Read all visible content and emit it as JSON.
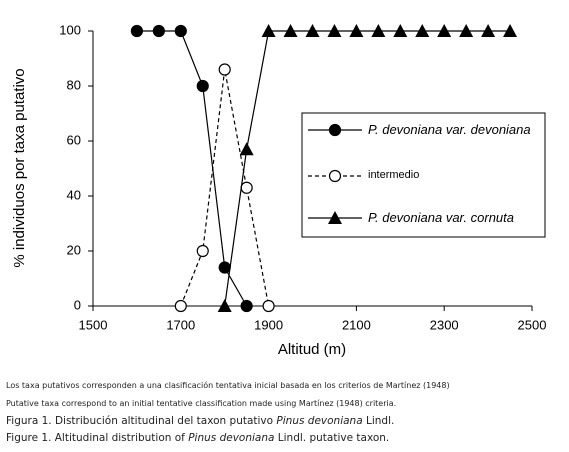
{
  "chart_data": {
    "type": "line",
    "x_label": "Altitud (m)",
    "y_label": "% individuos por taxa putativo",
    "xlim": [
      1500,
      2500
    ],
    "xticks": [
      1500,
      1700,
      1900,
      2100,
      2300,
      2500
    ],
    "ylim": [
      0,
      100
    ],
    "yticks": [
      0,
      20,
      40,
      60,
      80,
      100
    ],
    "grid": false,
    "legend": "right",
    "series": [
      {
        "name": "P. devoniana var. devoniana",
        "color": "#000000",
        "marker": "filled-circle",
        "line_style": "solid",
        "label_style": "italic",
        "x": [
          1600,
          1650,
          1700,
          1750,
          1800,
          1850
        ],
        "values": [
          100,
          100,
          100,
          80,
          14,
          0
        ]
      },
      {
        "name": "intermedio",
        "color": "#000000",
        "marker": "open-circle",
        "line_style": "dashed",
        "label_style": "normal",
        "x": [
          1700,
          1750,
          1800,
          1850,
          1900
        ],
        "values": [
          0,
          20,
          86,
          43,
          0
        ]
      },
      {
        "name": "P. devoniana var. cornuta",
        "color": "#000000",
        "marker": "triangle",
        "line_style": "solid",
        "label_style": "italic",
        "x": [
          1800,
          1850,
          1900,
          1950,
          2000,
          2050,
          2100,
          2150,
          2200,
          2250,
          2300,
          2350,
          2400,
          2450
        ],
        "values": [
          0,
          57,
          100,
          100,
          100,
          100,
          100,
          100,
          100,
          100,
          100,
          100,
          100,
          100
        ]
      }
    ]
  },
  "captions": [
    [
      "Los taxa putativos corresponden a una clasificación tentativa inicial basada en los criterios de Martínez (1948)"
    ],
    [
      "Putative taxa correspond to an initial tentative classification made using Martínez (1948) criteria."
    ],
    [
      "Figura 1. Distribución altitudinal del taxon putativo ",
      "Pinus devoniana",
      " Lindl."
    ],
    [
      "Figure 1. Altitudinal distribution of ",
      "Pinus devoniana",
      " Lindl. putative taxon."
    ]
  ]
}
